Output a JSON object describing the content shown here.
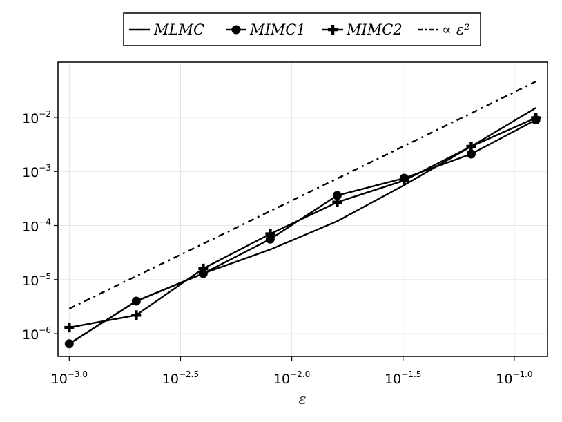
{
  "chart_data": {
    "type": "line",
    "x_scale": "log",
    "y_scale": "log",
    "xlabel": "ε",
    "ylabel": "",
    "title": "",
    "xlim": [
      0.00089,
      0.141
    ],
    "ylim": [
      3.8e-07,
      0.105
    ],
    "grid": true,
    "legend_position": "top",
    "x_ticks": [
      {
        "value": 0.001,
        "base": "10",
        "exp": "−3.0"
      },
      {
        "value": 0.0031623,
        "base": "10",
        "exp": "−2.5"
      },
      {
        "value": 0.01,
        "base": "10",
        "exp": "−2.0"
      },
      {
        "value": 0.031623,
        "base": "10",
        "exp": "−1.5"
      },
      {
        "value": 0.1,
        "base": "10",
        "exp": "−1.0"
      }
    ],
    "y_ticks": [
      {
        "value": 1e-06,
        "base": "10",
        "exp": "−6"
      },
      {
        "value": 1e-05,
        "base": "10",
        "exp": "−5"
      },
      {
        "value": 0.0001,
        "base": "10",
        "exp": "−4"
      },
      {
        "value": 0.001,
        "base": "10",
        "exp": "−3"
      },
      {
        "value": 0.01,
        "base": "10",
        "exp": "−2"
      }
    ],
    "x": [
      0.001,
      0.002,
      0.004,
      0.008,
      0.016,
      0.032,
      0.064,
      0.125
    ],
    "series": [
      {
        "name": "MLMC",
        "values": [
          6.5e-07,
          4e-06,
          1.3e-05,
          3.6e-05,
          0.00012,
          0.00056,
          0.0029,
          0.015
        ],
        "marker": "none",
        "dash": "solid"
      },
      {
        "name": "MIMC1",
        "values": [
          6.5e-07,
          4e-06,
          1.3e-05,
          5.6e-05,
          0.00036,
          0.00075,
          0.0021,
          0.009
        ],
        "marker": "circle",
        "dash": "solid"
      },
      {
        "name": "MIMC2",
        "values": [
          1.3e-06,
          2.2e-06,
          1.6e-05,
          7e-05,
          0.00027,
          0.00068,
          0.0029,
          0.0098
        ],
        "marker": "plus",
        "dash": "solid"
      },
      {
        "name": "∝ ε²",
        "values": [
          2.9e-06,
          1.16e-05,
          4.6e-05,
          0.000185,
          0.00074,
          0.00296,
          0.0119,
          0.046
        ],
        "marker": "none",
        "dash": "dashdot"
      }
    ],
    "colors": {
      "lines": "#000000",
      "grid": "#e4e4e4",
      "frame": "#000000"
    }
  }
}
